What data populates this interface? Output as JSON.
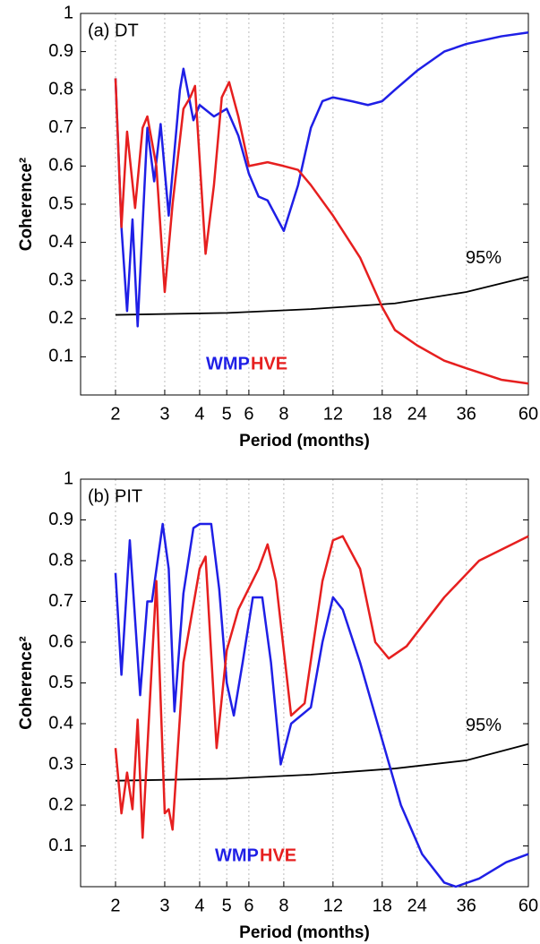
{
  "chart_data": [
    {
      "type": "line",
      "annotation": "(a) DT",
      "xlabel": "Period (months)",
      "ylabel": "Coherence²",
      "xscale": "log",
      "grid": "x",
      "xlim": [
        1.5,
        60
      ],
      "ylim": [
        0,
        1
      ],
      "xticks": [
        2,
        3,
        4,
        5,
        6,
        8,
        12,
        18,
        24,
        36,
        60
      ],
      "yticks": [
        0.1,
        0.2,
        0.3,
        0.4,
        0.5,
        0.6,
        0.7,
        0.8,
        0.9,
        1
      ],
      "series": [
        {
          "name": "WMP",
          "color": "#1f1fe6",
          "x": [
            2,
            2.1,
            2.2,
            2.3,
            2.4,
            2.6,
            2.75,
            2.9,
            3.1,
            3.4,
            3.5,
            3.8,
            4,
            4.5,
            5,
            5.5,
            6,
            6.5,
            7,
            8,
            9,
            10,
            11,
            12,
            14,
            16,
            18,
            20,
            24,
            30,
            36,
            48,
            60
          ],
          "values": [
            0.83,
            0.44,
            0.22,
            0.46,
            0.18,
            0.7,
            0.56,
            0.71,
            0.47,
            0.8,
            0.855,
            0.72,
            0.76,
            0.73,
            0.75,
            0.68,
            0.58,
            0.52,
            0.51,
            0.43,
            0.55,
            0.7,
            0.77,
            0.78,
            0.77,
            0.76,
            0.77,
            0.8,
            0.85,
            0.9,
            0.92,
            0.94,
            0.95
          ]
        },
        {
          "name": "HVE",
          "color": "#e61f1f",
          "x": [
            2,
            2.1,
            2.2,
            2.35,
            2.5,
            2.6,
            2.8,
            3,
            3.2,
            3.5,
            3.7,
            3.85,
            4.2,
            4.5,
            4.8,
            5.1,
            5.5,
            6,
            7,
            8,
            9,
            10,
            12,
            15,
            18,
            20,
            24,
            30,
            36,
            48,
            60
          ],
          "values": [
            0.83,
            0.44,
            0.69,
            0.49,
            0.7,
            0.73,
            0.6,
            0.27,
            0.5,
            0.75,
            0.78,
            0.81,
            0.37,
            0.55,
            0.78,
            0.82,
            0.73,
            0.6,
            0.61,
            0.6,
            0.59,
            0.55,
            0.47,
            0.36,
            0.23,
            0.17,
            0.13,
            0.09,
            0.07,
            0.04,
            0.03
          ]
        }
      ],
      "threshold": {
        "name": "95%",
        "color": "#000000",
        "x": [
          2,
          5,
          10,
          20,
          36,
          60
        ],
        "values": [
          0.21,
          0.215,
          0.225,
          0.24,
          0.27,
          0.31
        ]
      }
    },
    {
      "type": "line",
      "annotation": "(b) PIT",
      "xlabel": "Period (months)",
      "ylabel": "Coherence²",
      "xscale": "log",
      "grid": "x",
      "xlim": [
        1.5,
        60
      ],
      "ylim": [
        0,
        1
      ],
      "xticks": [
        2,
        3,
        4,
        5,
        6,
        8,
        12,
        18,
        24,
        36,
        60
      ],
      "yticks": [
        0.1,
        0.2,
        0.3,
        0.4,
        0.5,
        0.6,
        0.7,
        0.8,
        0.9,
        1
      ],
      "series": [
        {
          "name": "WMP",
          "color": "#1f1fe6",
          "x": [
            2,
            2.1,
            2.25,
            2.45,
            2.6,
            2.7,
            2.95,
            3.1,
            3.25,
            3.5,
            3.8,
            4,
            4.4,
            4.7,
            5,
            5.3,
            5.7,
            6.2,
            6.7,
            7.2,
            7.8,
            8.5,
            10,
            11,
            12,
            13,
            15,
            18,
            21,
            25,
            30,
            33,
            40,
            50,
            60
          ],
          "values": [
            0.77,
            0.52,
            0.85,
            0.47,
            0.7,
            0.7,
            0.89,
            0.78,
            0.43,
            0.72,
            0.88,
            0.89,
            0.89,
            0.73,
            0.5,
            0.42,
            0.55,
            0.71,
            0.71,
            0.55,
            0.3,
            0.4,
            0.44,
            0.6,
            0.71,
            0.68,
            0.55,
            0.36,
            0.2,
            0.08,
            0.01,
            0,
            0.02,
            0.06,
            0.08
          ]
        },
        {
          "name": "HVE",
          "color": "#e61f1f",
          "x": [
            2,
            2.1,
            2.2,
            2.3,
            2.4,
            2.5,
            2.7,
            2.8,
            3,
            3.1,
            3.2,
            3.5,
            4,
            4.2,
            4.6,
            5,
            5.5,
            6.5,
            7,
            7.5,
            8.5,
            9.5,
            11,
            12,
            13,
            15,
            17,
            19,
            22,
            30,
            40,
            60
          ],
          "values": [
            0.34,
            0.18,
            0.28,
            0.19,
            0.41,
            0.12,
            0.55,
            0.75,
            0.18,
            0.19,
            0.14,
            0.55,
            0.78,
            0.81,
            0.34,
            0.58,
            0.68,
            0.78,
            0.84,
            0.75,
            0.42,
            0.45,
            0.75,
            0.85,
            0.86,
            0.78,
            0.6,
            0.56,
            0.59,
            0.71,
            0.8,
            0.86
          ]
        }
      ],
      "threshold": {
        "name": "95%",
        "color": "#000000",
        "x": [
          2,
          5,
          10,
          20,
          36,
          60
        ],
        "values": [
          0.26,
          0.265,
          0.275,
          0.29,
          0.31,
          0.35
        ]
      }
    }
  ]
}
